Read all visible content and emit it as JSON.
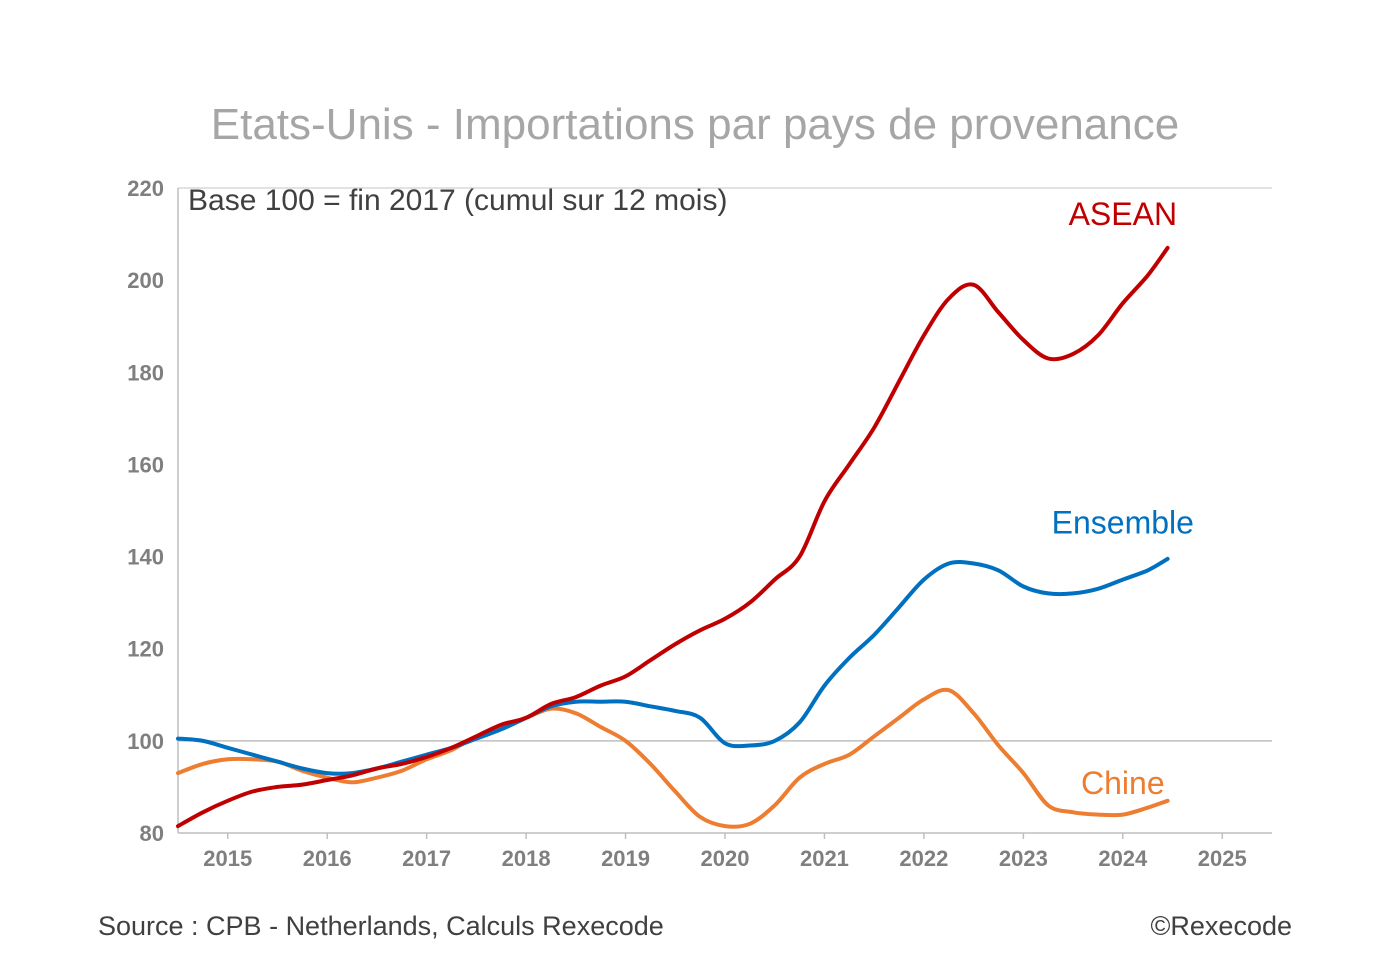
{
  "chart_data": {
    "type": "line",
    "title": "Etats-Unis - Importations par pays de provenance",
    "subtitle": "Base 100 = fin 2017 (cumul sur 12 mois)",
    "ylim": [
      80,
      220
    ],
    "xlim": [
      2014.5,
      2025.5
    ],
    "yticks": [
      80,
      100,
      120,
      140,
      160,
      180,
      200,
      220
    ],
    "xtick_labels": [
      "2015",
      "2016",
      "2017",
      "2018",
      "2019",
      "2020",
      "2021",
      "2022",
      "2023",
      "2024",
      "2025"
    ],
    "reference_line": 100,
    "series": [
      {
        "name": "ASEAN",
        "color": "#c00000",
        "label_x": 2024.0,
        "label_y": 212,
        "x": [
          2014.5,
          2014.75,
          2015.0,
          2015.25,
          2015.5,
          2015.75,
          2016.0,
          2016.25,
          2016.5,
          2016.75,
          2017.0,
          2017.25,
          2017.5,
          2017.75,
          2018.0,
          2018.25,
          2018.5,
          2018.75,
          2019.0,
          2019.25,
          2019.5,
          2019.75,
          2020.0,
          2020.25,
          2020.5,
          2020.75,
          2021.0,
          2021.25,
          2021.5,
          2021.75,
          2022.0,
          2022.25,
          2022.5,
          2022.75,
          2023.0,
          2023.25,
          2023.5,
          2023.75,
          2024.0,
          2024.25,
          2024.45
        ],
        "values": [
          81.5,
          84.5,
          87,
          89,
          90,
          90.5,
          91.5,
          92.5,
          94,
          95,
          96.5,
          98.5,
          101,
          103.5,
          105,
          108,
          109.5,
          112,
          114,
          117.5,
          121,
          124,
          126.5,
          130,
          135,
          140,
          152,
          160,
          168,
          178,
          188,
          196,
          199,
          193,
          187,
          183,
          184,
          188,
          195,
          201,
          207
        ]
      },
      {
        "name": "Ensemble",
        "color": "#0070c0",
        "label_x": 2024.0,
        "label_y": 145,
        "x": [
          2014.5,
          2014.75,
          2015.0,
          2015.25,
          2015.5,
          2015.75,
          2016.0,
          2016.25,
          2016.5,
          2016.75,
          2017.0,
          2017.25,
          2017.5,
          2017.75,
          2018.0,
          2018.25,
          2018.5,
          2018.75,
          2019.0,
          2019.25,
          2019.5,
          2019.75,
          2020.0,
          2020.25,
          2020.5,
          2020.75,
          2021.0,
          2021.25,
          2021.5,
          2021.75,
          2022.0,
          2022.25,
          2022.5,
          2022.75,
          2023.0,
          2023.25,
          2023.5,
          2023.75,
          2024.0,
          2024.25,
          2024.45
        ],
        "values": [
          100.5,
          100,
          98.5,
          97,
          95.5,
          94,
          93,
          93,
          94,
          95.5,
          97,
          98.5,
          100.5,
          102.5,
          105,
          107.5,
          108.5,
          108.5,
          108.5,
          107.5,
          106.5,
          105,
          99.5,
          99,
          100,
          104,
          112,
          118,
          123,
          129,
          135,
          138.5,
          138.5,
          137,
          133.5,
          132,
          132,
          133,
          135,
          137,
          139.5
        ]
      },
      {
        "name": "Chine",
        "color": "#ed7d31",
        "label_x": 2024.0,
        "label_y": 88.5,
        "x": [
          2014.5,
          2014.75,
          2015.0,
          2015.25,
          2015.5,
          2015.75,
          2016.0,
          2016.25,
          2016.5,
          2016.75,
          2017.0,
          2017.25,
          2017.5,
          2017.75,
          2018.0,
          2018.25,
          2018.5,
          2018.75,
          2019.0,
          2019.25,
          2019.5,
          2019.75,
          2020.0,
          2020.25,
          2020.5,
          2020.75,
          2021.0,
          2021.25,
          2021.5,
          2021.75,
          2022.0,
          2022.25,
          2022.5,
          2022.75,
          2023.0,
          2023.25,
          2023.5,
          2023.75,
          2024.0,
          2024.25,
          2024.45
        ],
        "values": [
          93,
          95,
          96,
          96,
          95.5,
          93.5,
          92,
          91,
          92,
          93.5,
          96,
          98,
          101,
          103,
          105,
          107,
          106,
          103,
          100,
          95,
          89,
          83.5,
          81.5,
          82,
          86,
          92,
          95,
          97,
          101,
          105,
          109,
          111,
          106,
          99,
          93,
          86,
          84.5,
          84,
          84,
          85.5,
          87
        ]
      }
    ]
  },
  "footer": {
    "source": "Source : CPB - Netherlands, Calculs Rexecode",
    "copyright": "©Rexecode"
  }
}
